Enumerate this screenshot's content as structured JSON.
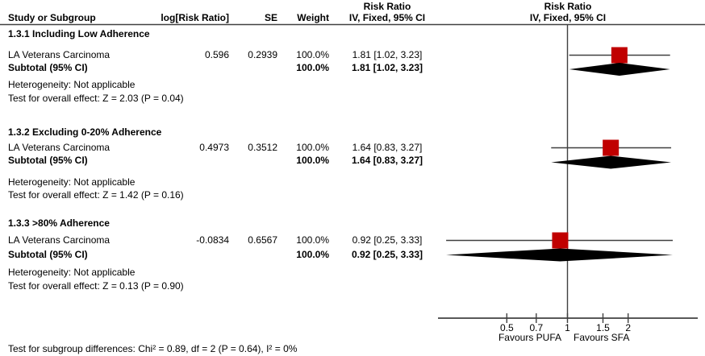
{
  "table": {
    "header": {
      "study": "Study or Subgroup",
      "log_rr": "log[Risk Ratio]",
      "se": "SE",
      "weight": "Weight",
      "effect_top": "Risk Ratio",
      "effect_bottom": "IV, Fixed, 95% CI"
    },
    "plot_header": {
      "top": "Risk Ratio",
      "bottom": "IV, Fixed, 95% CI"
    },
    "subgroups": [
      {
        "heading": "1.3.1 Including Low Adherence",
        "study": {
          "name": "LA Veterans Carcinoma",
          "log_rr": "0.596",
          "se": "0.2939",
          "weight": "100.0%",
          "effect": "1.81 [1.02, 3.23]"
        },
        "subtotal": {
          "label": "Subtotal (95% CI)",
          "weight": "100.0%",
          "effect": "1.81 [1.02, 3.23]"
        },
        "heterogeneity": "Heterogeneity: Not applicable",
        "overall": "Test for overall effect: Z = 2.03 (P = 0.04)"
      },
      {
        "heading": "1.3.2 Excluding 0-20% Adherence",
        "study": {
          "name": "LA Veterans Carcinoma",
          "log_rr": "0.4973",
          "se": "0.3512",
          "weight": "100.0%",
          "effect": "1.64 [0.83, 3.27]"
        },
        "subtotal": {
          "label": "Subtotal (95% CI)",
          "weight": "100.0%",
          "effect": "1.64 [0.83, 3.27]"
        },
        "heterogeneity": "Heterogeneity: Not applicable",
        "overall": "Test for overall effect: Z = 1.42 (P = 0.16)"
      },
      {
        "heading": "1.3.3 >80% Adherence",
        "study": {
          "name": "LA Veterans Carcinoma",
          "log_rr": "-0.0834",
          "se": "0.6567",
          "weight": "100.0%",
          "effect": "0.92 [0.25, 3.33]"
        },
        "subtotal": {
          "label": "Subtotal (95% CI)",
          "weight": "100.0%",
          "effect": "0.92 [0.25, 3.33]"
        },
        "heterogeneity": "Heterogeneity: Not applicable",
        "overall": "Test for overall effect: Z = 0.13 (P = 0.90)"
      }
    ],
    "footer": "Test for subgroup differences: Chi² = 0.89, df = 2 (P = 0.64), I² = 0%"
  },
  "axis": {
    "tick_labels": [
      "0.5",
      "0.7",
      "1",
      "1.5",
      "2"
    ],
    "favours_left": "Favours PUFA",
    "favours_right": "Favours SFA"
  },
  "chart_data": {
    "type": "forest",
    "scale": "log",
    "null_value": 1,
    "axis_ticks": [
      0.5,
      0.7,
      1,
      1.5,
      2
    ],
    "axis_range": [
      0.23,
      4.4
    ],
    "effect_measure": "Risk Ratio",
    "method": "IV, Fixed, 95% CI",
    "subgroups": [
      {
        "name": "1.3.1 Including Low Adherence",
        "studies": [
          {
            "name": "LA Veterans Carcinoma",
            "est": 1.81,
            "lo": 1.02,
            "hi": 3.23,
            "weight_pct": 100.0
          }
        ],
        "subtotal": {
          "est": 1.81,
          "lo": 1.02,
          "hi": 3.23
        }
      },
      {
        "name": "1.3.2 Excluding 0-20% Adherence",
        "studies": [
          {
            "name": "LA Veterans Carcinoma",
            "est": 1.64,
            "lo": 0.83,
            "hi": 3.27,
            "weight_pct": 100.0
          }
        ],
        "subtotal": {
          "est": 1.64,
          "lo": 0.83,
          "hi": 3.27
        }
      },
      {
        "name": "1.3.3 >80% Adherence",
        "studies": [
          {
            "name": "LA Veterans Carcinoma",
            "est": 0.92,
            "lo": 0.25,
            "hi": 3.33,
            "weight_pct": 100.0
          }
        ],
        "subtotal": {
          "est": 0.92,
          "lo": 0.25,
          "hi": 3.33
        }
      }
    ],
    "colors": {
      "square": "#c00000",
      "diamond": "#000000",
      "line": "#404040",
      "text": "#000000",
      "background": "#ffffff"
    }
  }
}
